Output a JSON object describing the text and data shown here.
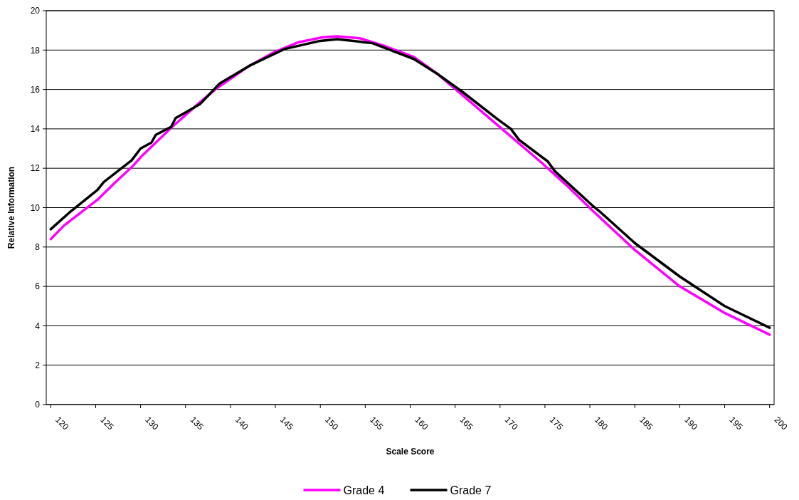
{
  "chart_data": {
    "type": "line",
    "xlabel": "Scale Score",
    "ylabel": "Relative Information",
    "xlim": [
      119.5,
      200.5
    ],
    "xticks": [
      120,
      125,
      130,
      135,
      140,
      145,
      150,
      155,
      160,
      165,
      170,
      175,
      180,
      185,
      190,
      195,
      200
    ],
    "ylim": [
      0,
      20
    ],
    "yticks": [
      0,
      2,
      4,
      6,
      8,
      10,
      12,
      14,
      16,
      18,
      20
    ],
    "grid": "y",
    "legend": "bottom",
    "marker": "none",
    "line_style": "solid",
    "series": [
      {
        "name": "Grade 4",
        "color": "#ff00ff",
        "x": [
          120,
          121.5,
          123.2,
          125.2,
          127.1,
          129,
          130.1,
          133.4,
          136.6,
          138.3,
          142.1,
          144.9,
          147.6,
          150.3,
          151.9,
          154.4,
          157.2,
          160.4,
          163,
          166.5,
          170.6,
          174.7,
          177.6,
          180.3,
          185,
          190,
          195,
          200
        ],
        "values": [
          8.4,
          9.1,
          9.7,
          10.4,
          11.25,
          12.05,
          12.6,
          14.05,
          15.35,
          16,
          17.2,
          17.9,
          18.4,
          18.65,
          18.7,
          18.6,
          18.2,
          17.65,
          16.8,
          15.45,
          13.85,
          12.25,
          11.05,
          9.85,
          7.85,
          6,
          4.65,
          3.55
        ]
      },
      {
        "name": "Grade 7",
        "color": "#000000",
        "x": [
          120,
          122.2,
          125.2,
          125.9,
          129,
          130,
          131.2,
          131.7,
          133.4,
          133.9,
          136.6,
          138.8,
          142.1,
          146,
          149.8,
          151.9,
          155.8,
          160.4,
          163,
          165.9,
          169.7,
          171.2,
          172.1,
          175.3,
          176.1,
          180.3,
          181.1,
          185,
          190,
          195,
          200
        ],
        "values": [
          8.9,
          9.8,
          10.9,
          11.3,
          12.4,
          13,
          13.3,
          13.7,
          14.1,
          14.55,
          15.25,
          16.3,
          17.2,
          18.05,
          18.45,
          18.55,
          18.35,
          17.55,
          16.8,
          15.85,
          14.5,
          14,
          13.45,
          12.35,
          11.85,
          10.1,
          9.8,
          8.2,
          6.5,
          5,
          3.9
        ]
      }
    ]
  }
}
